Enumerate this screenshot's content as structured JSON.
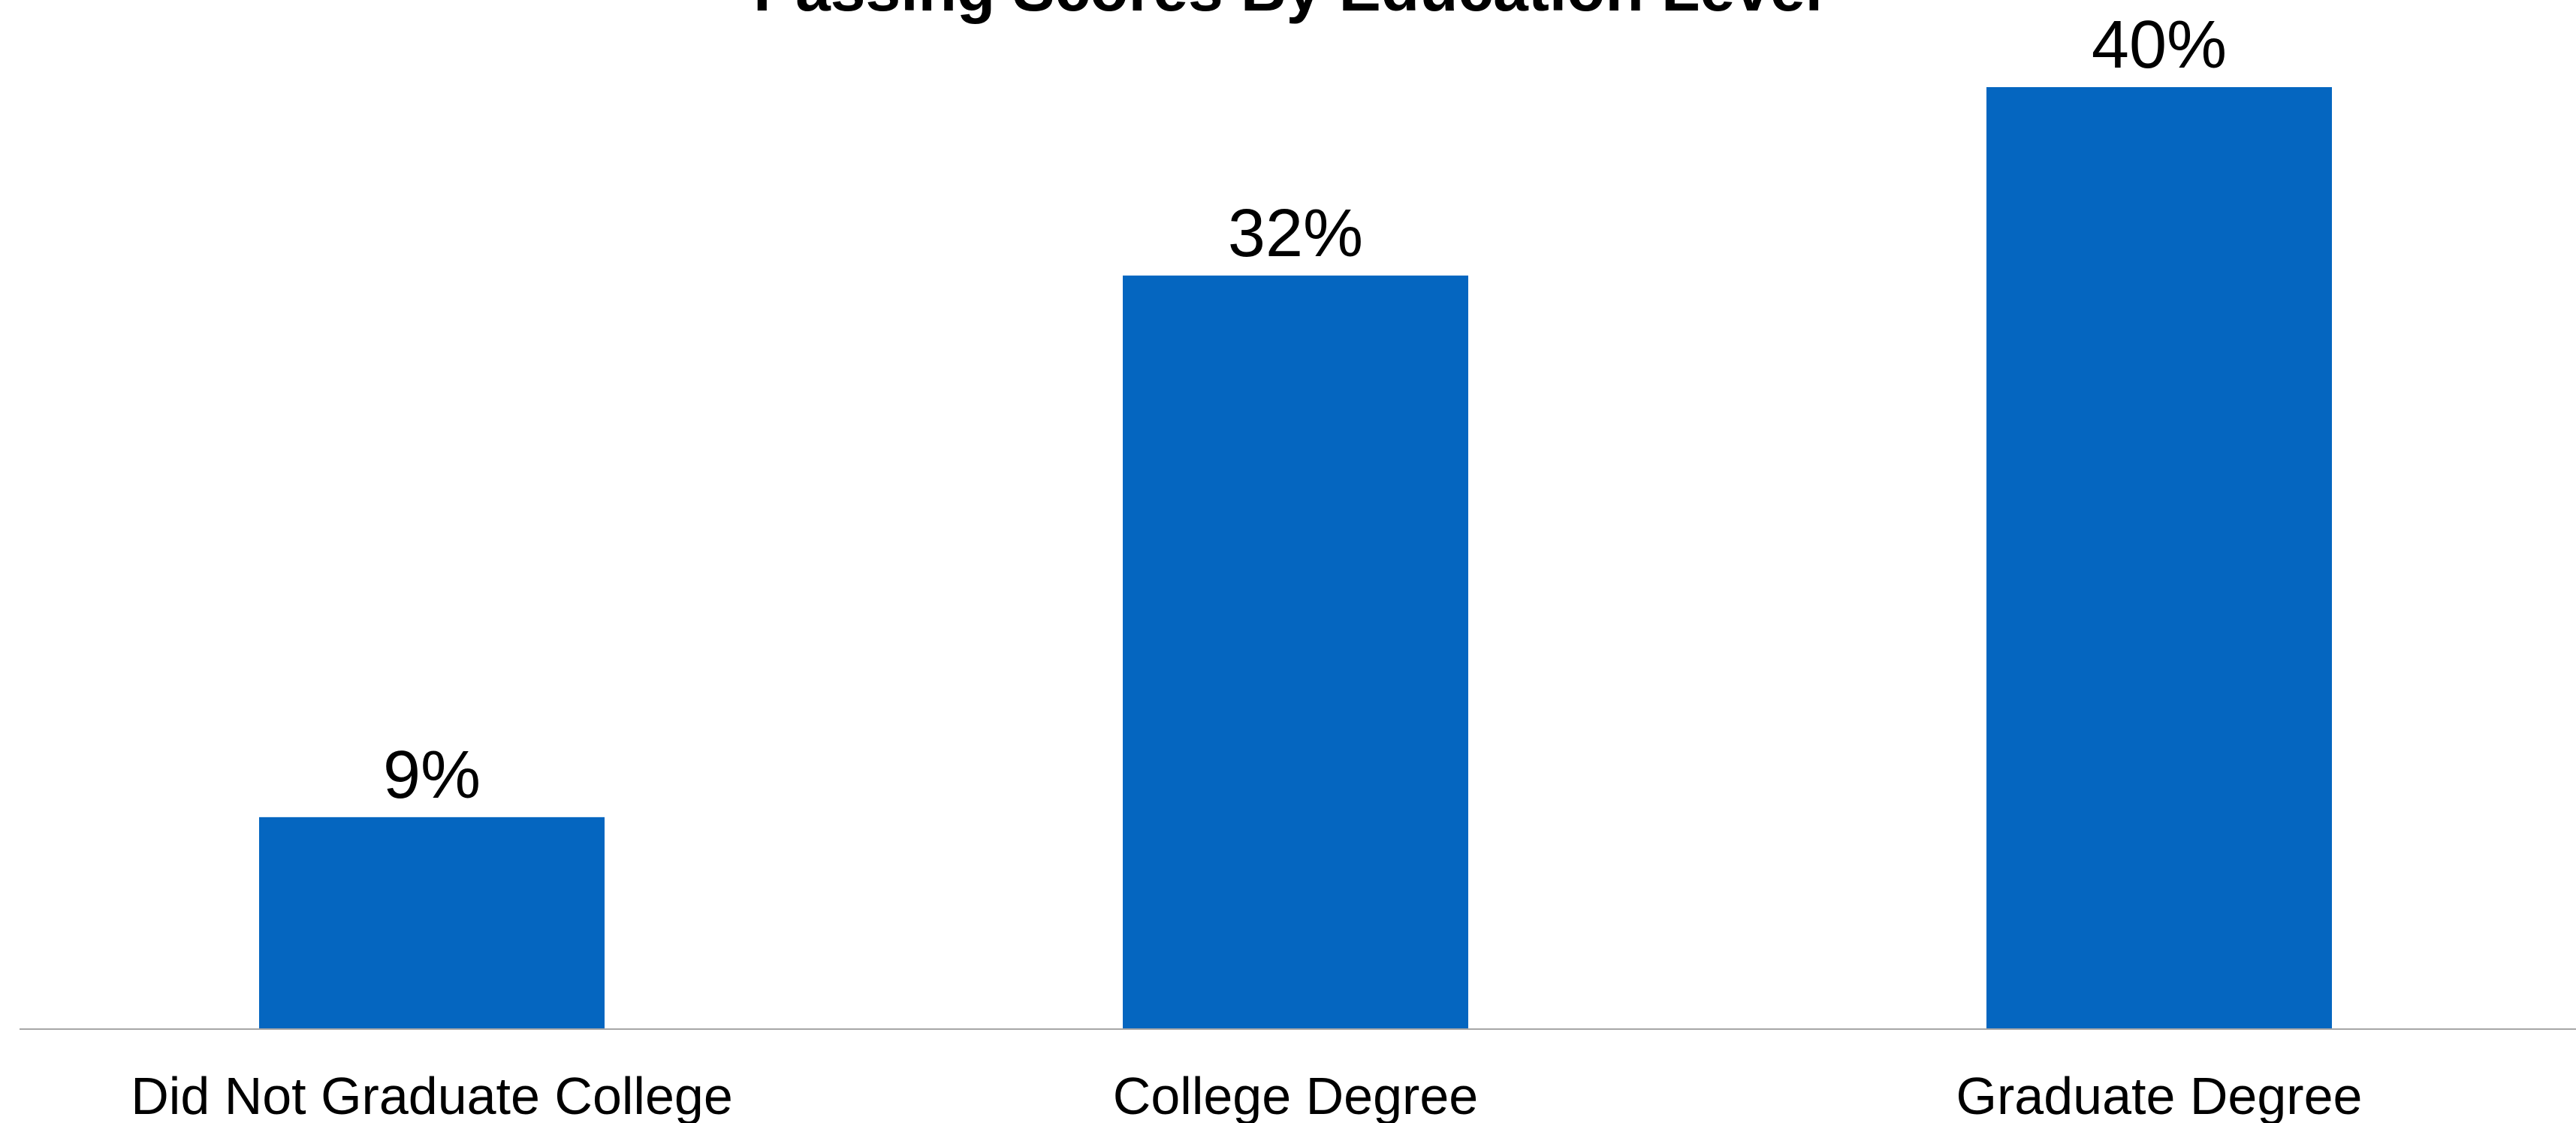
{
  "chart_data": {
    "type": "bar",
    "title": "Passing Scores By Education Level",
    "categories": [
      "Did Not Graduate College",
      "College Degree",
      "Graduate Degree"
    ],
    "values": [
      9,
      32,
      40
    ],
    "value_labels": [
      "9%",
      "32%",
      "40%"
    ],
    "xlabel": "",
    "ylabel": "",
    "ylim": [
      0,
      40
    ],
    "grid": false,
    "legend": "none",
    "colors": {
      "bar": "#0566c0",
      "axis": "#a6a6a6"
    }
  }
}
